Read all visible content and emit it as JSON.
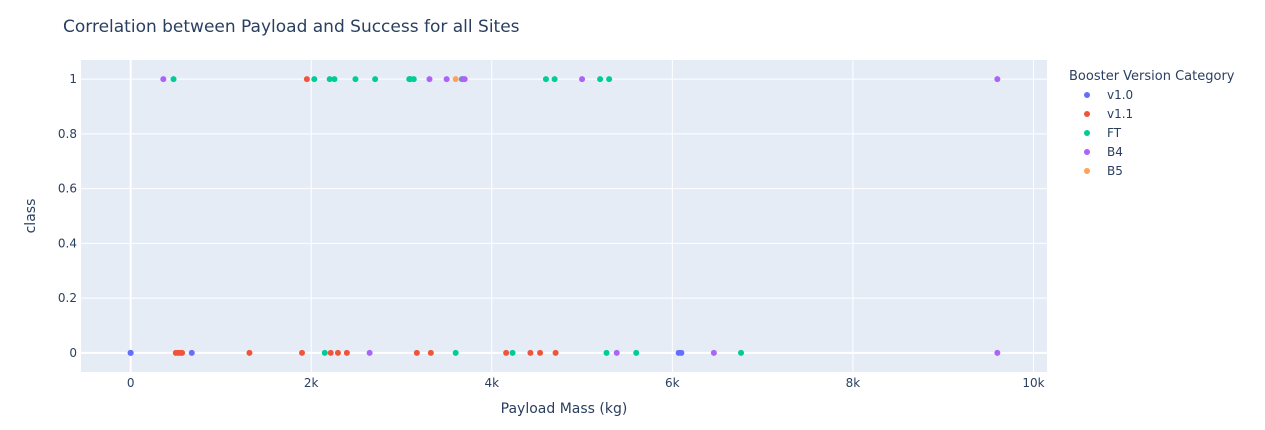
{
  "chart_data": {
    "type": "scatter",
    "title": "Correlation between Payload and Success for all Sites",
    "xlabel": "Payload Mass (kg)",
    "ylabel": "class",
    "xlim": [
      -550,
      10150
    ],
    "ylim": [
      -0.07,
      1.07
    ],
    "x_ticks": [
      0,
      2000,
      4000,
      6000,
      8000,
      10000
    ],
    "x_tick_labels": [
      "0",
      "2k",
      "4k",
      "6k",
      "8k",
      "10k"
    ],
    "y_ticks": [
      0,
      0.2,
      0.4,
      0.6,
      0.8,
      1
    ],
    "y_tick_labels": [
      "0",
      "0.2",
      "0.4",
      "0.6",
      "0.8",
      "1"
    ],
    "grid": true,
    "legend_title": "Booster Version Category",
    "legend_position": "right",
    "series": [
      {
        "name": "v1.0",
        "color": "#636efa",
        "points": [
          [
            0,
            0
          ],
          [
            0,
            0
          ],
          [
            677,
            0
          ],
          [
            6070,
            0
          ],
          [
            6100,
            0
          ]
        ]
      },
      {
        "name": "v1.1",
        "color": "#ef553b",
        "points": [
          [
            500,
            0
          ],
          [
            525,
            0
          ],
          [
            550,
            0
          ],
          [
            570,
            0
          ],
          [
            1316,
            0
          ],
          [
            1898,
            0
          ],
          [
            1952,
            1
          ],
          [
            2216,
            0
          ],
          [
            2296,
            0
          ],
          [
            2395,
            0
          ],
          [
            3170,
            0
          ],
          [
            3325,
            0
          ],
          [
            4159,
            0
          ],
          [
            4428,
            0
          ],
          [
            4535,
            0
          ],
          [
            4707,
            0
          ]
        ]
      },
      {
        "name": "FT",
        "color": "#00cc96",
        "points": [
          [
            475,
            1
          ],
          [
            2034,
            1
          ],
          [
            2205,
            1
          ],
          [
            2257,
            1
          ],
          [
            2490,
            1
          ],
          [
            2708,
            1
          ],
          [
            3086,
            1
          ],
          [
            3100,
            1
          ],
          [
            3136,
            1
          ],
          [
            3669,
            1
          ],
          [
            4600,
            1
          ],
          [
            4696,
            1
          ],
          [
            5200,
            1
          ],
          [
            5300,
            1
          ],
          [
            2150,
            0
          ],
          [
            3600,
            0
          ],
          [
            4230,
            0
          ],
          [
            5271,
            0
          ],
          [
            5600,
            0
          ],
          [
            6761,
            0
          ]
        ]
      },
      {
        "name": "B4",
        "color": "#ab63fa",
        "points": [
          [
            362,
            1
          ],
          [
            3310,
            1
          ],
          [
            3500,
            1
          ],
          [
            3681,
            1
          ],
          [
            3700,
            1
          ],
          [
            5000,
            1
          ],
          [
            9600,
            1
          ],
          [
            2647,
            0
          ],
          [
            5384,
            0
          ],
          [
            6460,
            0
          ],
          [
            9600,
            0
          ]
        ]
      },
      {
        "name": "B5",
        "color": "#ffa15a",
        "points": [
          [
            3600,
            1
          ]
        ]
      }
    ]
  }
}
